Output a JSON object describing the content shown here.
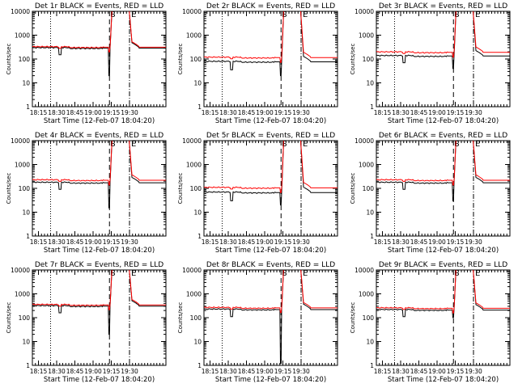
{
  "page": {
    "background": "#ffffff"
  },
  "colors": {
    "events": "#000000",
    "lld": "#ff0000"
  },
  "chart_data": [
    {
      "type": "line",
      "title": "Det 1r BLACK = Events, RED = LLD",
      "xlabel": "Start Time (12-Feb-07 18:04:20)",
      "ylabel": "Counts/sec",
      "yscale": "log",
      "ylim": [
        1,
        10000
      ],
      "xlim": [
        0,
        110
      ],
      "x_tick_labels": [
        "18:15",
        "18:30",
        "18:45",
        "19:00",
        "19:15",
        "19:30"
      ],
      "y_tick_labels": [
        "1",
        "10",
        "100",
        "1000",
        "10000"
      ],
      "annotations": [
        "S",
        "E"
      ],
      "markers": {
        "dotted_x": [
          15
        ],
        "dashed_x": [
          63.5
        ],
        "dashdot_x": [
          80
        ]
      },
      "levels": {
        "events": 300,
        "lld": 330,
        "dip_events": 150,
        "pre_drop": 20
      },
      "series": [
        {
          "name": "Events",
          "color": "#000000"
        },
        {
          "name": "LLD",
          "color": "#ff0000"
        }
      ]
    },
    {
      "type": "line",
      "title": "Det 2r BLACK = Events, RED = LLD",
      "xlabel": "Start Time (12-Feb-07 18:04:20)",
      "ylabel": "Counts/sec",
      "yscale": "log",
      "ylim": [
        1,
        10000
      ],
      "xlim": [
        0,
        110
      ],
      "x_tick_labels": [
        "18:15",
        "18:30",
        "18:45",
        "19:00",
        "19:15",
        "19:30"
      ],
      "y_tick_labels": [
        "1",
        "10",
        "100",
        "1000",
        "10000"
      ],
      "annotations": [
        "S",
        "E"
      ],
      "markers": {
        "dotted_x": [
          15
        ],
        "dashed_x": [
          63.5
        ],
        "dashdot_x": [
          80
        ]
      },
      "levels": {
        "events": 80,
        "lld": 120,
        "dip_events": 35,
        "pre_drop": 20
      },
      "series": [
        {
          "name": "Events",
          "color": "#000000"
        },
        {
          "name": "LLD",
          "color": "#ff0000"
        }
      ]
    },
    {
      "type": "line",
      "title": "Det 3r BLACK = Events, RED = LLD",
      "xlabel": "Start Time (12-Feb-07 18:04:20)",
      "ylabel": "Counts/sec",
      "yscale": "log",
      "ylim": [
        1,
        10000
      ],
      "xlim": [
        0,
        110
      ],
      "x_tick_labels": [
        "18:15",
        "18:30",
        "18:45",
        "19:00",
        "19:15",
        "19:30"
      ],
      "y_tick_labels": [
        "1",
        "10",
        "100",
        "1000",
        "10000"
      ],
      "annotations": [
        "S",
        "E"
      ],
      "markers": {
        "dotted_x": [
          15
        ],
        "dashed_x": [
          63.5
        ],
        "dashdot_x": [
          80
        ]
      },
      "levels": {
        "events": 140,
        "lld": 200,
        "dip_events": 70,
        "pre_drop": 40
      },
      "series": [
        {
          "name": "Events",
          "color": "#000000"
        },
        {
          "name": "LLD",
          "color": "#ff0000"
        }
      ]
    },
    {
      "type": "line",
      "title": "Det 4r BLACK = Events, RED = LLD",
      "xlabel": "Start Time (12-Feb-07 18:04:20)",
      "ylabel": "Counts/sec",
      "yscale": "log",
      "ylim": [
        1,
        10000
      ],
      "xlim": [
        0,
        110
      ],
      "x_tick_labels": [
        "18:15",
        "18:30",
        "18:45",
        "19:00",
        "19:15",
        "19:30"
      ],
      "y_tick_labels": [
        "1",
        "10",
        "100",
        "1000",
        "10000"
      ],
      "annotations": [
        "S",
        "E"
      ],
      "markers": {
        "dotted_x": [
          15
        ],
        "dashed_x": [
          63.5
        ],
        "dashdot_x": [
          80
        ]
      },
      "levels": {
        "events": 180,
        "lld": 230,
        "dip_events": 90,
        "pre_drop": 15
      },
      "series": [
        {
          "name": "Events",
          "color": "#000000"
        },
        {
          "name": "LLD",
          "color": "#ff0000"
        }
      ]
    },
    {
      "type": "line",
      "title": "Det 5r BLACK = Events, RED = LLD",
      "xlabel": "Start Time (12-Feb-07 18:04:20)",
      "ylabel": "Counts/sec",
      "yscale": "log",
      "ylim": [
        1,
        10000
      ],
      "xlim": [
        0,
        110
      ],
      "x_tick_labels": [
        "18:15",
        "18:30",
        "18:45",
        "19:00",
        "19:15",
        "19:30"
      ],
      "y_tick_labels": [
        "1",
        "10",
        "100",
        "1000",
        "10000"
      ],
      "annotations": [
        "S",
        "E"
      ],
      "markers": {
        "dotted_x": [
          15
        ],
        "dashed_x": [
          63.5
        ],
        "dashdot_x": [
          80
        ]
      },
      "levels": {
        "events": 70,
        "lld": 110,
        "dip_events": 30,
        "pre_drop": 20
      },
      "series": [
        {
          "name": "Events",
          "color": "#000000"
        },
        {
          "name": "LLD",
          "color": "#ff0000"
        }
      ]
    },
    {
      "type": "line",
      "title": "Det 6r BLACK = Events, RED = LLD",
      "xlabel": "Start Time (12-Feb-07 18:04:20)",
      "ylabel": "Counts/sec",
      "yscale": "log",
      "ylim": [
        1,
        10000
      ],
      "xlim": [
        0,
        110
      ],
      "x_tick_labels": [
        "18:15",
        "18:30",
        "18:45",
        "19:00",
        "19:15",
        "19:30"
      ],
      "y_tick_labels": [
        "1",
        "10",
        "100",
        "1000",
        "10000"
      ],
      "annotations": [
        "S",
        "E"
      ],
      "markers": {
        "dotted_x": [
          15
        ],
        "dashed_x": [
          63.5
        ],
        "dashdot_x": [
          80
        ]
      },
      "levels": {
        "events": 180,
        "lld": 230,
        "dip_events": 90,
        "pre_drop": 30
      },
      "series": [
        {
          "name": "Events",
          "color": "#000000"
        },
        {
          "name": "LLD",
          "color": "#ff0000"
        }
      ]
    },
    {
      "type": "line",
      "title": "Det 7r BLACK = Events, RED = LLD",
      "xlabel": "Start Time (12-Feb-07 18:04:20)",
      "ylabel": "Counts/sec",
      "yscale": "log",
      "ylim": [
        1,
        10000
      ],
      "xlim": [
        0,
        110
      ],
      "x_tick_labels": [
        "18:15",
        "18:30",
        "18:45",
        "19:00",
        "19:15",
        "19:30"
      ],
      "y_tick_labels": [
        "1",
        "10",
        "100",
        "1000",
        "10000"
      ],
      "annotations": [
        "S",
        "E"
      ],
      "markers": {
        "dotted_x": [
          15
        ],
        "dashed_x": [
          63.5
        ],
        "dashdot_x": [
          80
        ]
      },
      "levels": {
        "events": 320,
        "lld": 360,
        "dip_events": 160,
        "pre_drop": 20
      },
      "series": [
        {
          "name": "Events",
          "color": "#000000"
        },
        {
          "name": "LLD",
          "color": "#ff0000"
        }
      ]
    },
    {
      "type": "line",
      "title": "Det 8r BLACK = Events, RED = LLD",
      "xlabel": "Start Time (12-Feb-07 18:04:20)",
      "ylabel": "Counts/sec",
      "yscale": "log",
      "ylim": [
        1,
        10000
      ],
      "xlim": [
        0,
        110
      ],
      "x_tick_labels": [
        "18:15",
        "18:30",
        "18:45",
        "19:00",
        "19:15",
        "19:30"
      ],
      "y_tick_labels": [
        "1",
        "10",
        "100",
        "1000",
        "10000"
      ],
      "annotations": [
        "S",
        "E"
      ],
      "markers": {
        "dotted_x": [
          15
        ],
        "dashed_x": [
          63.5
        ],
        "dashdot_x": [
          80
        ]
      },
      "levels": {
        "events": 230,
        "lld": 270,
        "dip_events": 110,
        "pre_drop": 1.2
      },
      "series": [
        {
          "name": "Events",
          "color": "#000000"
        },
        {
          "name": "LLD",
          "color": "#ff0000"
        }
      ]
    },
    {
      "type": "line",
      "title": "Det 9r BLACK = Events, RED = LLD",
      "xlabel": "Start Time (12-Feb-07 18:04:20)",
      "ylabel": "Counts/sec",
      "yscale": "log",
      "ylim": [
        1,
        10000
      ],
      "xlim": [
        0,
        110
      ],
      "x_tick_labels": [
        "18:15",
        "18:30",
        "18:45",
        "19:00",
        "19:15",
        "19:30"
      ],
      "y_tick_labels": [
        "1",
        "10",
        "100",
        "1000",
        "10000"
      ],
      "annotations": [
        "S",
        "E"
      ],
      "markers": {
        "dotted_x": [
          15
        ],
        "dashed_x": [
          63.5
        ],
        "dashdot_x": [
          80
        ]
      },
      "levels": {
        "events": 220,
        "lld": 260,
        "dip_events": 110,
        "pre_drop": 100
      },
      "series": [
        {
          "name": "Events",
          "color": "#000000"
        },
        {
          "name": "LLD",
          "color": "#ff0000"
        }
      ]
    }
  ]
}
